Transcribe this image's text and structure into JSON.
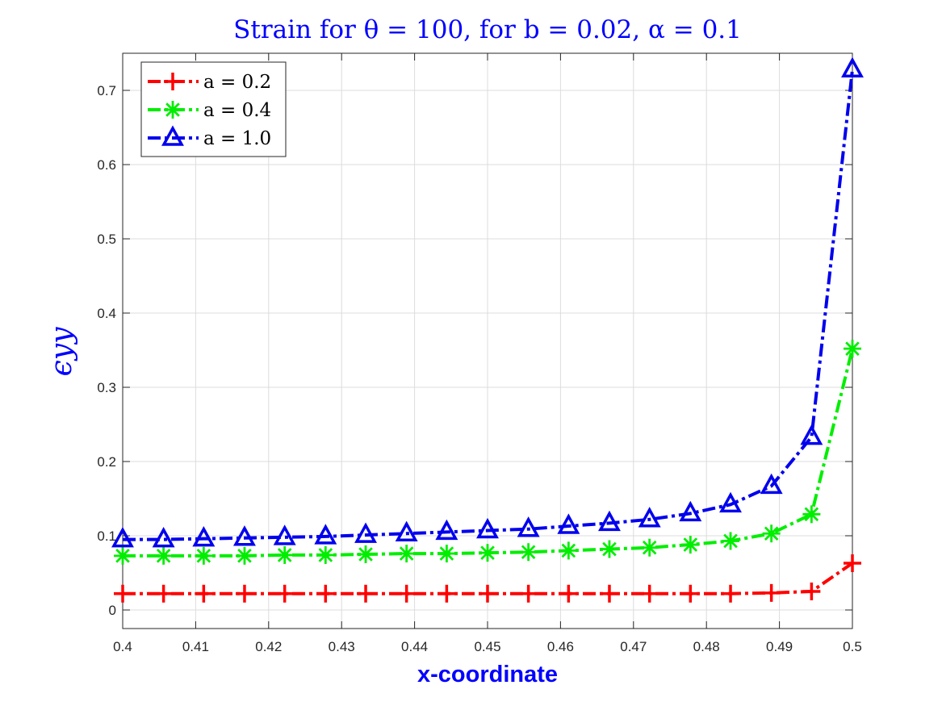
{
  "chart_data": {
    "type": "line",
    "title": "Strain for θ = 100, for b = 0.02, α = 0.1",
    "xlabel": "x-coordinate",
    "ylabel": "ϵyy",
    "xlim": [
      0.4,
      0.5
    ],
    "ylim": [
      -0.025,
      0.75
    ],
    "xticks": [
      0.4,
      0.41,
      0.42,
      0.43,
      0.44,
      0.45,
      0.46,
      0.47,
      0.48,
      0.49,
      0.5
    ],
    "xtick_labels": [
      "0.4",
      "0.41",
      "0.42",
      "0.43",
      "0.44",
      "0.45",
      "0.46",
      "0.47",
      "0.48",
      "0.49",
      "0.5"
    ],
    "yticks": [
      0,
      0.1,
      0.2,
      0.3,
      0.4,
      0.5,
      0.6,
      0.7
    ],
    "ytick_labels": [
      "0",
      "0.1",
      "0.2",
      "0.3",
      "0.4",
      "0.5",
      "0.6",
      "0.7"
    ],
    "grid": true,
    "legend_position": "top-left",
    "x": [
      0.4,
      0.4056,
      0.4111,
      0.4167,
      0.4222,
      0.4278,
      0.4333,
      0.4389,
      0.4444,
      0.45,
      0.4556,
      0.4611,
      0.4667,
      0.4722,
      0.4778,
      0.4833,
      0.4889,
      0.4944,
      0.5
    ],
    "series": [
      {
        "name": "a = 0.2",
        "color": "#ff0000",
        "marker": "plus",
        "values": [
          0.022,
          0.022,
          0.022,
          0.022,
          0.022,
          0.022,
          0.022,
          0.022,
          0.022,
          0.022,
          0.022,
          0.022,
          0.022,
          0.022,
          0.022,
          0.022,
          0.023,
          0.025,
          0.063
        ]
      },
      {
        "name": "a = 0.4",
        "color": "#00ee00",
        "marker": "asterisk",
        "values": [
          0.073,
          0.073,
          0.073,
          0.073,
          0.074,
          0.074,
          0.075,
          0.076,
          0.076,
          0.077,
          0.078,
          0.08,
          0.082,
          0.084,
          0.088,
          0.093,
          0.103,
          0.129,
          0.352
        ]
      },
      {
        "name": "a = 1.0",
        "color": "#0000ee",
        "marker": "triangle",
        "values": [
          0.095,
          0.095,
          0.096,
          0.097,
          0.098,
          0.099,
          0.101,
          0.103,
          0.105,
          0.107,
          0.109,
          0.113,
          0.117,
          0.122,
          0.13,
          0.142,
          0.167,
          0.233,
          0.728
        ]
      }
    ]
  }
}
